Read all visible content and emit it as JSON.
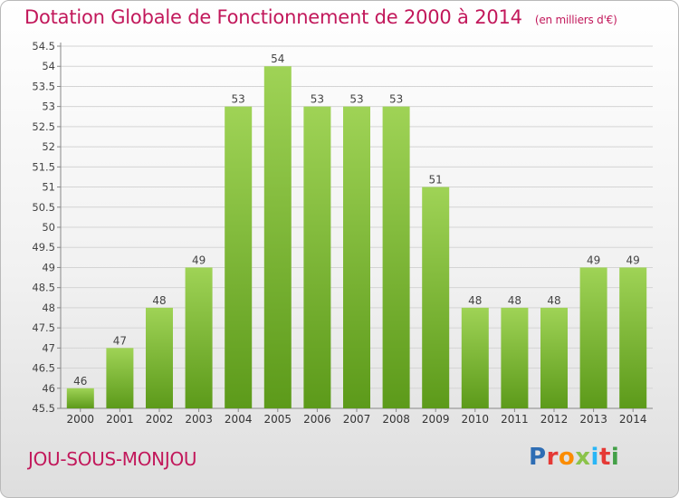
{
  "header": {
    "title": "Dotation Globale de Fonctionnement de 2000 à 2014",
    "unit": "(en milliers d'€)"
  },
  "footer": {
    "commune": "JOU-SOUS-MONJOU",
    "logo_letters": [
      {
        "ch": "P",
        "color": "#2e6db4"
      },
      {
        "ch": "r",
        "color": "#e53935"
      },
      {
        "ch": "o",
        "color": "#fb8c00"
      },
      {
        "ch": "x",
        "color": "#8bc34a"
      },
      {
        "ch": "i",
        "color": "#29b6f6"
      },
      {
        "ch": "t",
        "color": "#e53935"
      },
      {
        "ch": "i",
        "color": "#43a047"
      }
    ]
  },
  "colors": {
    "title": "#c2185b",
    "bar_top": "#9fd356",
    "bar_bottom": "#5c9a1a",
    "grid": "#d4d4d4"
  },
  "chart_data": {
    "type": "bar",
    "categories": [
      "2000",
      "2001",
      "2002",
      "2003",
      "2004",
      "2005",
      "2006",
      "2007",
      "2008",
      "2009",
      "2010",
      "2011",
      "2012",
      "2013",
      "2014"
    ],
    "values": [
      46,
      47,
      48,
      49,
      53,
      54,
      53,
      53,
      53,
      51,
      48,
      48,
      48,
      49,
      49
    ],
    "value_labels": [
      "46",
      "47",
      "48",
      "49",
      "53",
      "54",
      "53",
      "53",
      "53",
      "51",
      "48",
      "48",
      "48",
      "49",
      "49"
    ],
    "yticks": [
      "45.5",
      "46",
      "46.5",
      "47",
      "47.5",
      "48",
      "48.5",
      "49",
      "49.5",
      "50",
      "50.5",
      "51",
      "51.5",
      "52",
      "52.5",
      "53",
      "53.5",
      "54",
      "54.5"
    ],
    "ylim": [
      45.5,
      54.5
    ],
    "grid": true,
    "xlabel": "",
    "ylabel": ""
  }
}
